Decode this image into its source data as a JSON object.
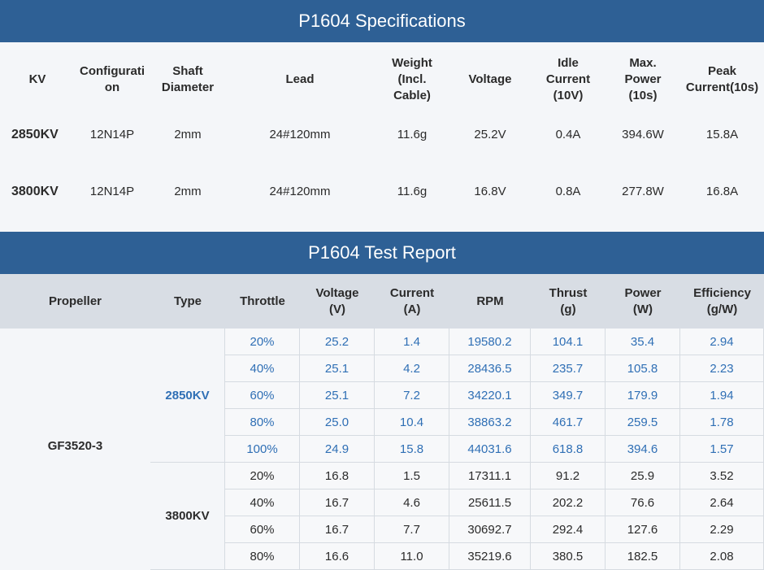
{
  "spec": {
    "title": "P1604 Specifications",
    "headers": [
      "KV",
      "Configurati\non",
      "Shaft\nDiameter",
      "Lead",
      "Weight\n(Incl.\nCable)",
      "Voltage",
      "Idle\nCurrent\n(10V)",
      "Max.\nPower\n(10s)",
      "Peak\nCurrent(10s)"
    ],
    "rows": [
      [
        "2850KV",
        "12N14P",
        "2mm",
        "24#120mm",
        "11.6g",
        "25.2V",
        "0.4A",
        "394.6W",
        "15.8A"
      ],
      [
        "3800KV",
        "12N14P",
        "2mm",
        "24#120mm",
        "11.6g",
        "16.8V",
        "0.8A",
        "277.8W",
        "16.8A"
      ]
    ]
  },
  "test": {
    "title": "P1604 Test Report",
    "headers": [
      "Propeller",
      "Type",
      "Throttle",
      "Voltage\n(V)",
      "Current\n(A)",
      "RPM",
      "Thrust\n(g)",
      "Power\n(W)",
      "Efficiency\n(g/W)"
    ],
    "propeller": "GF3520-3",
    "groups": [
      {
        "type": "2850KV",
        "rows": [
          [
            "20%",
            "25.2",
            "1.4",
            "19580.2",
            "104.1",
            "35.4",
            "2.94"
          ],
          [
            "40%",
            "25.1",
            "4.2",
            "28436.5",
            "235.7",
            "105.8",
            "2.23"
          ],
          [
            "60%",
            "25.1",
            "7.2",
            "34220.1",
            "349.7",
            "179.9",
            "1.94"
          ],
          [
            "80%",
            "25.0",
            "10.4",
            "38863.2",
            "461.7",
            "259.5",
            "1.78"
          ],
          [
            "100%",
            "24.9",
            "15.8",
            "44031.6",
            "618.8",
            "394.6",
            "1.57"
          ]
        ]
      },
      {
        "type": "3800KV",
        "rows": [
          [
            "20%",
            "16.8",
            "1.5",
            "17311.1",
            "91.2",
            "25.9",
            "3.52"
          ],
          [
            "40%",
            "16.7",
            "4.6",
            "25611.5",
            "202.2",
            "76.6",
            "2.64"
          ],
          [
            "60%",
            "16.7",
            "7.7",
            "30692.7",
            "292.4",
            "127.6",
            "2.29"
          ],
          [
            "80%",
            "16.6",
            "11.0",
            "35219.6",
            "380.5",
            "182.5",
            "2.08"
          ]
        ]
      }
    ]
  },
  "colors": {
    "banner": "#2e6095",
    "highlight_text": "#2f6fb5",
    "header_bg": "#d8dde4"
  }
}
